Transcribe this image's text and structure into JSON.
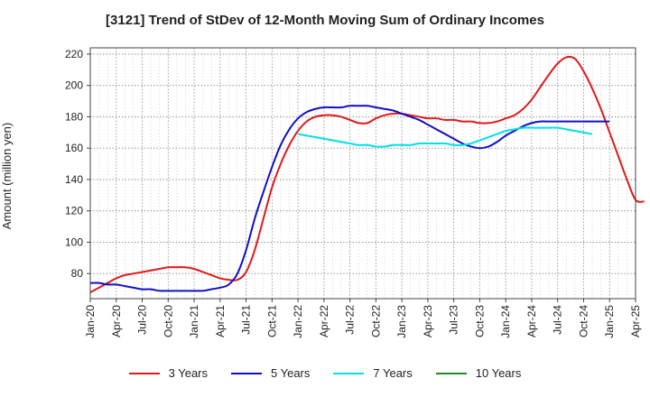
{
  "chart_data": {
    "type": "line",
    "title": "[3121]  Trend of StDev of 12-Month Moving Sum of Ordinary Incomes",
    "ylabel": "Amount (million yen)",
    "xlabel": "",
    "ylim": [
      64,
      224
    ],
    "yticks": [
      80,
      100,
      120,
      140,
      160,
      180,
      200,
      220
    ],
    "xticks": [
      "Jan-20",
      "Apr-20",
      "Jul-20",
      "Oct-20",
      "Jan-21",
      "Apr-21",
      "Jul-21",
      "Oct-21",
      "Jan-22",
      "Apr-22",
      "Jul-22",
      "Oct-22",
      "Jan-23",
      "Apr-23",
      "Jul-23",
      "Oct-23",
      "Jan-24",
      "Apr-24",
      "Jul-24",
      "Oct-24",
      "Jan-25",
      "Apr-25"
    ],
    "grid": true,
    "legend_position": "bottom",
    "series": [
      {
        "name": "3 Years",
        "color": "#e01a1a",
        "start": "Jan-20",
        "values": [
          68,
          71,
          74,
          77,
          79,
          80,
          81,
          82,
          83,
          84,
          84,
          84,
          83,
          81,
          79,
          77,
          76,
          76,
          81,
          95,
          115,
          135,
          150,
          162,
          171,
          177,
          180,
          181,
          181,
          180,
          178,
          176,
          176,
          179,
          181,
          182,
          182,
          181,
          180,
          179,
          179,
          178,
          178,
          177,
          177,
          176,
          176,
          177,
          179,
          181,
          185,
          191,
          199,
          207,
          214,
          218,
          217,
          209,
          198,
          185,
          170,
          155,
          140,
          127,
          126
        ]
      },
      {
        "name": "5 Years",
        "color": "#1010c8",
        "start": "Jan-20",
        "values": [
          74,
          74,
          73,
          73,
          72,
          71,
          70,
          70,
          69,
          69,
          69,
          69,
          69,
          69,
          70,
          71,
          73,
          80,
          95,
          115,
          132,
          148,
          162,
          172,
          179,
          183,
          185,
          186,
          186,
          186,
          187,
          187,
          187,
          186,
          185,
          184,
          182,
          180,
          178,
          175,
          172,
          169,
          166,
          163,
          161,
          160,
          161,
          164,
          168,
          171,
          174,
          176,
          177,
          177,
          177,
          177,
          177,
          177,
          177,
          177,
          177
        ]
      },
      {
        "name": "7 Years",
        "color": "#00e0e8",
        "start": "Jan-22",
        "values": [
          169,
          168,
          167,
          166,
          165,
          164,
          163,
          162,
          162,
          161,
          161,
          162,
          162,
          162,
          163,
          163,
          163,
          163,
          162,
          162,
          163,
          165,
          167,
          169,
          171,
          172,
          173,
          173,
          173,
          173,
          173,
          172,
          171,
          170,
          169
        ]
      },
      {
        "name": "10 Years",
        "color": "#228b22",
        "start": "Jan-22",
        "values": []
      }
    ]
  }
}
